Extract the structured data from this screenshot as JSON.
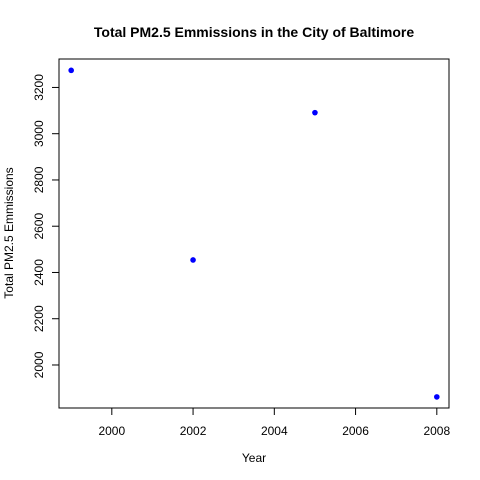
{
  "chart_data": {
    "type": "scatter",
    "title": "Total PM2.5 Emmissions in the City of Baltimore",
    "xlabel": "Year",
    "ylabel": "Total PM2.5 Emmissions",
    "x": [
      1999,
      2002,
      2005,
      2008
    ],
    "y": [
      3274,
      2454,
      3091,
      1862
    ],
    "xlim": [
      1998.7,
      2008.3
    ],
    "ylim": [
      1814,
      3323
    ],
    "xticks": [
      2000,
      2002,
      2004,
      2006,
      2008
    ],
    "yticks": [
      2000,
      2200,
      2400,
      2600,
      2800,
      3000,
      3200
    ],
    "point_color": "#0000ff",
    "grid": false,
    "legend": "none"
  }
}
